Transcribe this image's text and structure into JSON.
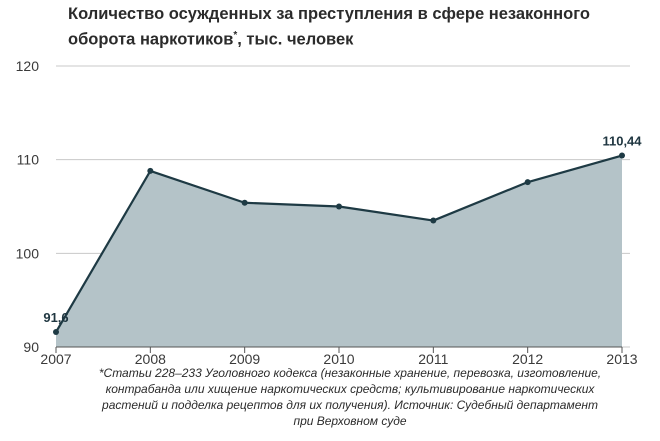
{
  "title": {
    "line1": "Количество осужденных за преступления в сфере незаконного",
    "line2_main": "оборота наркотиков",
    "line2_mark": "*",
    "line2_rest": ", тыс. человек"
  },
  "footnote": {
    "lines": [
      "*Статьи 228–233 Уголовного кодекса (незаконные хранение, перевозка, изготовление,",
      "контрабанда или хищение наркотических средств; культивирование наркотических",
      "растений и подделка рецептов для их получения). Источник: Судебный департамент",
      "при Верховном суде"
    ]
  },
  "colors": {
    "area_fill": "#b4c3c8",
    "line": "#1e3a44",
    "grid": "#c8c8c8",
    "axis": "#555555"
  },
  "chart_data": {
    "type": "area",
    "x": [
      "2007",
      "2008",
      "2009",
      "2010",
      "2011",
      "2012",
      "2013"
    ],
    "series": [
      {
        "values": [
          91.6,
          108.8,
          105.4,
          105.0,
          103.5,
          107.6,
          110.44
        ]
      }
    ],
    "data_labels": [
      {
        "index": 0,
        "text": "91,6"
      },
      {
        "index": 6,
        "text": "110,44"
      }
    ],
    "yticks": [
      "90",
      "100",
      "110",
      "120"
    ],
    "ylim": [
      90,
      120
    ],
    "grid": true,
    "legend": false
  }
}
